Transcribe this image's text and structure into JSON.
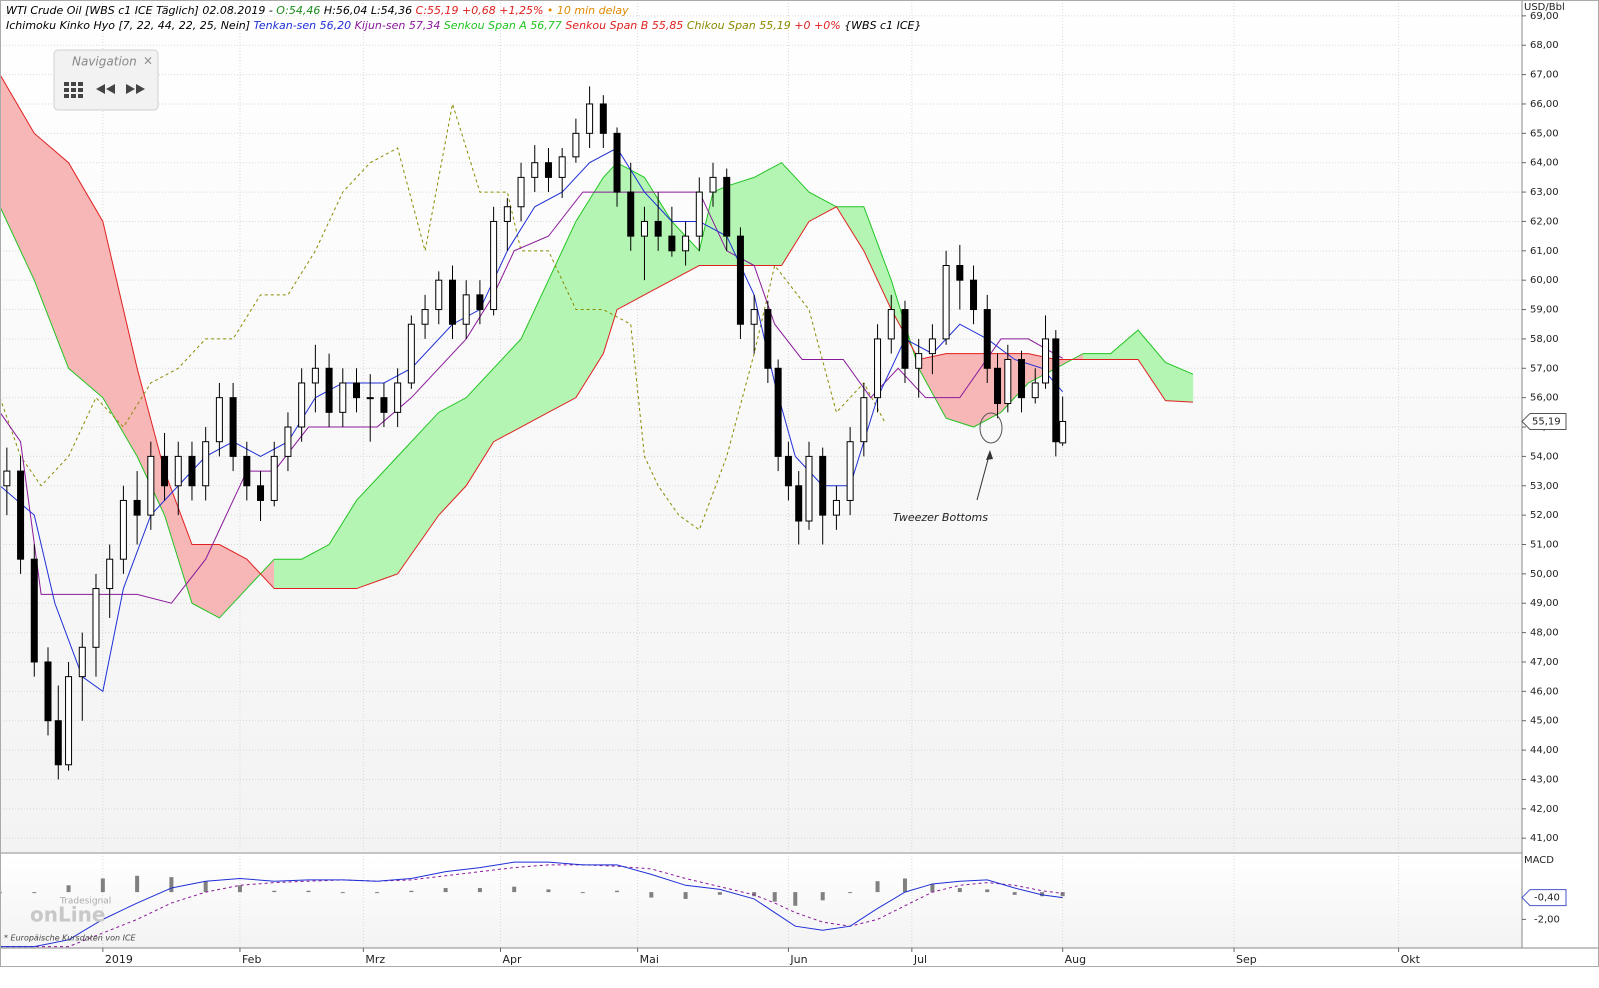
{
  "chart_data": {
    "type": "candlestick",
    "header_line1": [
      {
        "text": "WTI Crude Oil [WBS c1 ICE Täglich] 02.08.2019 - ",
        "color": "#000000"
      },
      {
        "text": "O:54,46 ",
        "color": "#1a8a1a"
      },
      {
        "text": "H:56,04 ",
        "color": "#000000"
      },
      {
        "text": "L:54,36 ",
        "color": "#000000"
      },
      {
        "text": "C:55,19 +0,68 +1,25% ",
        "color": "#e02020"
      },
      {
        "text": "• 10 min delay",
        "color": "#e08a00"
      }
    ],
    "header_line2": [
      {
        "text": "Ichimoku Kinko Hyo [7, 22, 44, 22, 25, Nein] ",
        "color": "#000000"
      },
      {
        "text": "Tenkan-sen 56,20 ",
        "color": "#1f2fd6"
      },
      {
        "text": "Kijun-sen 57,34 ",
        "color": "#8a1a9a"
      },
      {
        "text": "Senkou Span A 56,77 ",
        "color": "#22c422"
      },
      {
        "text": "Senkou Span B 55,85 ",
        "color": "#e02020"
      },
      {
        "text": "Chikou Span 55,19 ",
        "color": "#8a8a00"
      },
      {
        "text": "+0 +0% ",
        "color": "#e02020"
      },
      {
        "text": "{WBS c1 ICE}",
        "color": "#000000"
      }
    ],
    "unit_label": "USD/Bbl",
    "xlim": [
      0,
      222
    ],
    "xticks": [
      {
        "value": 15,
        "label": "2019"
      },
      {
        "value": 35,
        "label": "Feb"
      },
      {
        "value": 53,
        "label": "Mrz"
      },
      {
        "value": 73,
        "label": "Apr"
      },
      {
        "value": 93,
        "label": "Mai"
      },
      {
        "value": 115,
        "label": "Jun"
      },
      {
        "value": 133,
        "label": "Jul"
      },
      {
        "value": 155,
        "label": "Aug"
      },
      {
        "value": 180,
        "label": "Sep"
      },
      {
        "value": 204,
        "label": "Okt"
      }
    ],
    "ylim": [
      40.53,
      69.54
    ],
    "yticks": [
      {
        "value": 41,
        "label": "41,00"
      },
      {
        "value": 42,
        "label": "42,00"
      },
      {
        "value": 43,
        "label": "43,00"
      },
      {
        "value": 44,
        "label": "44,00"
      },
      {
        "value": 45,
        "label": "45,00"
      },
      {
        "value": 46,
        "label": "46,00"
      },
      {
        "value": 47,
        "label": "47,00"
      },
      {
        "value": 48,
        "label": "48,00"
      },
      {
        "value": 49,
        "label": "49,00"
      },
      {
        "value": 50,
        "label": "50,00"
      },
      {
        "value": 51,
        "label": "51,00"
      },
      {
        "value": 52,
        "label": "52,00"
      },
      {
        "value": 53,
        "label": "53,00"
      },
      {
        "value": 54,
        "label": "54,00"
      },
      {
        "value": 55,
        "label": "55,00"
      },
      {
        "value": 56,
        "label": "56,00"
      },
      {
        "value": 57,
        "label": "57,00"
      },
      {
        "value": 58,
        "label": "58,00"
      },
      {
        "value": 59,
        "label": "59,00"
      },
      {
        "value": 60,
        "label": "60,00"
      },
      {
        "value": 61,
        "label": "61,00"
      },
      {
        "value": 62,
        "label": "62,00"
      },
      {
        "value": 63,
        "label": "63,00"
      },
      {
        "value": 64,
        "label": "64,00"
      },
      {
        "value": 65,
        "label": "65,00"
      },
      {
        "value": 66,
        "label": "66,00"
      },
      {
        "value": 67,
        "label": "67,00"
      },
      {
        "value": 68,
        "label": "68,00"
      },
      {
        "value": 69,
        "label": "69,00"
      }
    ],
    "grid": true,
    "last_price": {
      "value": 55.19,
      "label": "55,19"
    },
    "candles": {
      "x": [
        1,
        3,
        5,
        7,
        8.5,
        10,
        12,
        14,
        16,
        18,
        20,
        22,
        24,
        26,
        28,
        30,
        32,
        34,
        36,
        38,
        40,
        42,
        44,
        46,
        48,
        50,
        52,
        54,
        56,
        58,
        60,
        62,
        64,
        66,
        68,
        70,
        72,
        74,
        76,
        78,
        80,
        82,
        84,
        86,
        88,
        90,
        92,
        94,
        96,
        98,
        100,
        102,
        104,
        106,
        108,
        110,
        112,
        113.5,
        115,
        116.5,
        118,
        120,
        122,
        124,
        126,
        128,
        130,
        132,
        134,
        136,
        138,
        140,
        142,
        144,
        145.5,
        147,
        149,
        151,
        152.5,
        154,
        155
      ],
      "open": [
        53.0,
        53.5,
        50.5,
        47.0,
        45.0,
        43.5,
        46.5,
        47.5,
        49.5,
        50.5,
        52.5,
        52.0,
        54.0,
        53.0,
        54.0,
        53.0,
        54.5,
        56.0,
        54.0,
        53.0,
        52.5,
        54.0,
        55.0,
        56.5,
        57.0,
        55.5,
        56.5,
        56.0,
        56.0,
        55.5,
        56.5,
        58.5,
        59.0,
        60.0,
        58.5,
        59.5,
        59.0,
        62.0,
        62.5,
        63.5,
        64.0,
        63.5,
        64.2,
        65.0,
        66.0,
        65.0,
        63.0,
        61.5,
        62.0,
        61.5,
        61.0,
        61.5,
        63.0,
        63.5,
        61.5,
        58.5,
        59.0,
        57.0,
        54.0,
        53.0,
        51.8,
        54.0,
        52.0,
        52.5,
        54.5,
        56.0,
        58.0,
        59.0,
        57.0,
        57.5,
        58.0,
        60.5,
        60.0,
        59.0,
        57.0,
        55.8,
        57.3,
        56.0,
        56.5,
        58.0,
        54.46
      ],
      "high": [
        54.3,
        54.0,
        51.0,
        47.5,
        46.2,
        47.0,
        48.0,
        50.0,
        51.0,
        53.0,
        53.5,
        54.5,
        54.8,
        54.5,
        54.5,
        55.0,
        56.5,
        56.5,
        54.5,
        53.5,
        54.5,
        55.5,
        57.0,
        57.8,
        57.5,
        57.0,
        57.0,
        56.8,
        56.5,
        57.0,
        58.8,
        59.5,
        60.3,
        60.5,
        60.0,
        60.0,
        62.5,
        62.8,
        64.0,
        64.6,
        64.5,
        64.5,
        65.5,
        66.6,
        66.3,
        65.2,
        64.0,
        62.5,
        63.0,
        62.5,
        62.0,
        63.5,
        64.0,
        63.8,
        61.8,
        59.5,
        59.3,
        57.3,
        54.5,
        53.5,
        54.5,
        54.3,
        53.0,
        55.0,
        56.5,
        58.5,
        59.5,
        59.3,
        58.0,
        58.5,
        61.0,
        61.2,
        60.5,
        59.5,
        57.5,
        57.8,
        57.6,
        57.0,
        58.8,
        58.3,
        56.04
      ],
      "low": [
        52.0,
        50.0,
        46.5,
        44.5,
        43.0,
        43.3,
        45.0,
        46.5,
        48.5,
        50.0,
        51.0,
        51.5,
        52.5,
        52.0,
        52.5,
        52.5,
        54.0,
        53.5,
        52.5,
        51.8,
        52.3,
        53.5,
        54.5,
        55.5,
        55.0,
        55.0,
        55.5,
        54.5,
        55.0,
        55.0,
        56.3,
        58.0,
        58.5,
        58.0,
        58.0,
        58.5,
        58.8,
        61.0,
        62.0,
        63.0,
        63.0,
        62.8,
        64.0,
        64.5,
        64.5,
        62.5,
        61.0,
        60.0,
        61.0,
        60.8,
        60.5,
        61.0,
        62.5,
        61.0,
        58.0,
        57.5,
        56.5,
        53.5,
        52.5,
        51.0,
        51.5,
        51.0,
        51.5,
        52.0,
        54.0,
        55.5,
        57.5,
        56.5,
        56.0,
        56.8,
        57.8,
        59.0,
        58.5,
        56.5,
        55.3,
        55.5,
        55.5,
        55.8,
        56.3,
        54.0,
        54.36
      ],
      "close": [
        53.5,
        50.5,
        47.0,
        45.0,
        43.5,
        46.5,
        47.5,
        49.5,
        50.5,
        52.5,
        52.0,
        54.0,
        53.0,
        54.0,
        53.0,
        54.5,
        56.0,
        54.0,
        53.0,
        52.5,
        54.0,
        55.0,
        56.5,
        57.0,
        55.5,
        56.5,
        56.0,
        56.0,
        55.5,
        56.5,
        58.5,
        59.0,
        60.0,
        58.5,
        59.5,
        59.0,
        62.0,
        62.5,
        63.5,
        64.0,
        63.5,
        64.2,
        65.0,
        66.0,
        65.0,
        63.0,
        61.5,
        62.0,
        61.5,
        61.0,
        61.5,
        63.0,
        63.5,
        61.5,
        58.5,
        59.0,
        57.0,
        54.0,
        53.0,
        51.8,
        54.0,
        52.0,
        52.5,
        54.5,
        56.0,
        58.0,
        59.0,
        57.0,
        57.5,
        58.0,
        60.5,
        60.0,
        59.0,
        57.0,
        55.8,
        57.3,
        56.0,
        56.5,
        58.0,
        54.5,
        55.19
      ]
    },
    "cloud": {
      "up_color": "#b4f5b4",
      "down_color": "#f7b7b7",
      "x": [
        0,
        5,
        10,
        15,
        20,
        24,
        28,
        32,
        36,
        40,
        44,
        48,
        52,
        58,
        64,
        68,
        72,
        76,
        80,
        84,
        88,
        90,
        94,
        98,
        102,
        104,
        106,
        110,
        114,
        118,
        122,
        126,
        130,
        134,
        138,
        142,
        146,
        150,
        154,
        158,
        162,
        166,
        170,
        174
      ],
      "span_a": [
        62.5,
        60,
        57,
        56,
        54,
        52,
        49,
        48.5,
        49.5,
        50.5,
        50.5,
        51,
        52.5,
        54,
        55.5,
        56,
        57,
        58,
        60,
        62,
        63.5,
        64,
        63.5,
        62,
        61,
        63,
        63.2,
        63.5,
        64,
        63,
        62.5,
        62.5,
        60,
        57,
        55.3,
        55,
        55.5,
        56.5,
        57,
        57.5,
        57.5,
        58.3,
        57.2,
        56.8
      ],
      "span_b": [
        67,
        65,
        64,
        62,
        57,
        53.5,
        51,
        51,
        50.5,
        49.5,
        49.5,
        49.5,
        49.5,
        50,
        52,
        53,
        54.5,
        55,
        55.5,
        56,
        57.5,
        59,
        59.5,
        60,
        60.5,
        60.5,
        60.5,
        60.5,
        60.5,
        62,
        62.5,
        61,
        59,
        57.3,
        57.5,
        57.5,
        57.5,
        57.5,
        57.3,
        57.3,
        57.3,
        57.3,
        55.9,
        55.85
      ],
      "span_a_color": "#22c422",
      "span_b_color": "#e02020"
    },
    "lines": [
      {
        "color": "#8a8a00",
        "dash": true,
        "x": [
          0,
          3,
          6,
          10,
          14,
          18,
          22,
          26,
          30,
          34,
          38,
          42,
          46,
          50,
          54,
          58,
          62,
          66,
          70,
          74,
          76,
          80,
          84,
          88,
          92,
          94,
          96,
          99,
          102,
          106,
          110,
          113,
          118,
          122,
          126,
          129
        ],
        "values": [
          56,
          54,
          53,
          54,
          56,
          55,
          56.5,
          57,
          58,
          58,
          59.5,
          59.5,
          61,
          63,
          64,
          64.5,
          61,
          66,
          63,
          63,
          61,
          61,
          59,
          59,
          58.5,
          54,
          53,
          52,
          51.5,
          54,
          57.5,
          60.5,
          59,
          55.5,
          56.5,
          55.19
        ]
      },
      {
        "color": "#8a1a9a",
        "dash": false,
        "x": [
          0,
          3,
          6,
          10,
          16,
          20,
          25,
          30,
          33,
          36,
          40,
          45,
          50,
          55,
          60,
          64,
          68,
          72,
          75,
          80,
          85,
          88,
          92,
          97,
          102,
          106,
          110,
          113,
          117,
          123,
          127,
          131,
          135,
          140,
          146,
          150,
          155
        ],
        "values": [
          55.5,
          54.5,
          49.3,
          49.3,
          49.3,
          49.3,
          49,
          50.5,
          52,
          53.5,
          53.5,
          55,
          55,
          55,
          56,
          57,
          58,
          59.5,
          61,
          61.5,
          63,
          63,
          63,
          63,
          63,
          61,
          60.5,
          58.5,
          57.3,
          57.3,
          56,
          57,
          56,
          56,
          58,
          58,
          57.34
        ]
      },
      {
        "color": "#1f2fd6",
        "dash": false,
        "x": [
          0,
          5,
          8,
          12,
          15,
          18,
          22,
          26,
          30,
          34,
          38,
          42,
          46,
          50,
          56,
          60,
          66,
          70,
          74,
          78,
          82,
          86,
          90,
          94,
          98,
          102,
          106,
          110,
          113,
          116,
          120,
          124,
          128,
          132,
          136,
          140,
          144,
          148,
          152,
          155
        ],
        "values": [
          53,
          52,
          49,
          46.5,
          46,
          49.5,
          52,
          53,
          54,
          54.5,
          54,
          54.5,
          56,
          56.5,
          56.5,
          57,
          58.5,
          59,
          61,
          62.5,
          63,
          64,
          64.5,
          63,
          62,
          62,
          61.5,
          59.5,
          56.5,
          54,
          53,
          53,
          56,
          58,
          57.5,
          58.5,
          58,
          57.3,
          57,
          56.2
        ]
      }
    ],
    "annotation": "Tweezer Bottoms",
    "macd": {
      "label": "MACD",
      "ylim": [
        -4.1,
        2.65
      ],
      "yticks": [
        {
          "value": -2,
          "label": "-2,00"
        }
      ],
      "last": {
        "value": -0.4,
        "label": "-0,40"
      },
      "macd_color": "#1f2fd6",
      "signal_color": "#8a1a9a",
      "hist_color": "#808080",
      "x": [
        0,
        5,
        10,
        15,
        20,
        25,
        30,
        35,
        40,
        45,
        50,
        55,
        60,
        65,
        70,
        75,
        80,
        85,
        90,
        95,
        100,
        105,
        110,
        113,
        116,
        120,
        124,
        128,
        132,
        136,
        140,
        144,
        148,
        152,
        155
      ],
      "macd_line": [
        -4,
        -4,
        -3.5,
        -2,
        -0.8,
        0.3,
        0.8,
        1,
        0.8,
        0.9,
        0.9,
        0.8,
        1,
        1.5,
        1.8,
        2.2,
        2.2,
        2,
        2,
        1.3,
        0.5,
        0.2,
        -0.5,
        -1.5,
        -2.5,
        -2.8,
        -2.5,
        -1.2,
        0,
        0.6,
        0.8,
        0.9,
        0.3,
        -0.2,
        -0.4
      ],
      "signal": [
        -4,
        -4,
        -4,
        -3,
        -2,
        -0.8,
        0,
        0.5,
        0.7,
        0.8,
        0.9,
        0.8,
        0.9,
        1.2,
        1.5,
        1.8,
        2,
        2,
        1.9,
        1.7,
        1,
        0.4,
        -0.2,
        -0.8,
        -1.5,
        -2.2,
        -2.5,
        -2,
        -1,
        0,
        0.5,
        0.7,
        0.5,
        0.1,
        -0.1
      ],
      "histogram": [
        0,
        0,
        0.5,
        1,
        1.2,
        1.1,
        0.8,
        0.5,
        0.1,
        0.1,
        0,
        0,
        0.1,
        0.3,
        0.3,
        0.4,
        0.2,
        0,
        0.1,
        -0.4,
        -0.5,
        -0.2,
        -0.3,
        -0.7,
        -1,
        -0.6,
        0,
        0.8,
        1,
        0.6,
        0.3,
        0.2,
        -0.2,
        -0.3,
        -0.3
      ]
    }
  },
  "ui": {
    "navigation_title": "Navigation",
    "close": "×",
    "watermark_small": "Tradesignal",
    "watermark": "onLine",
    "source_note": "* Europäische Kursdaten von ICE"
  }
}
